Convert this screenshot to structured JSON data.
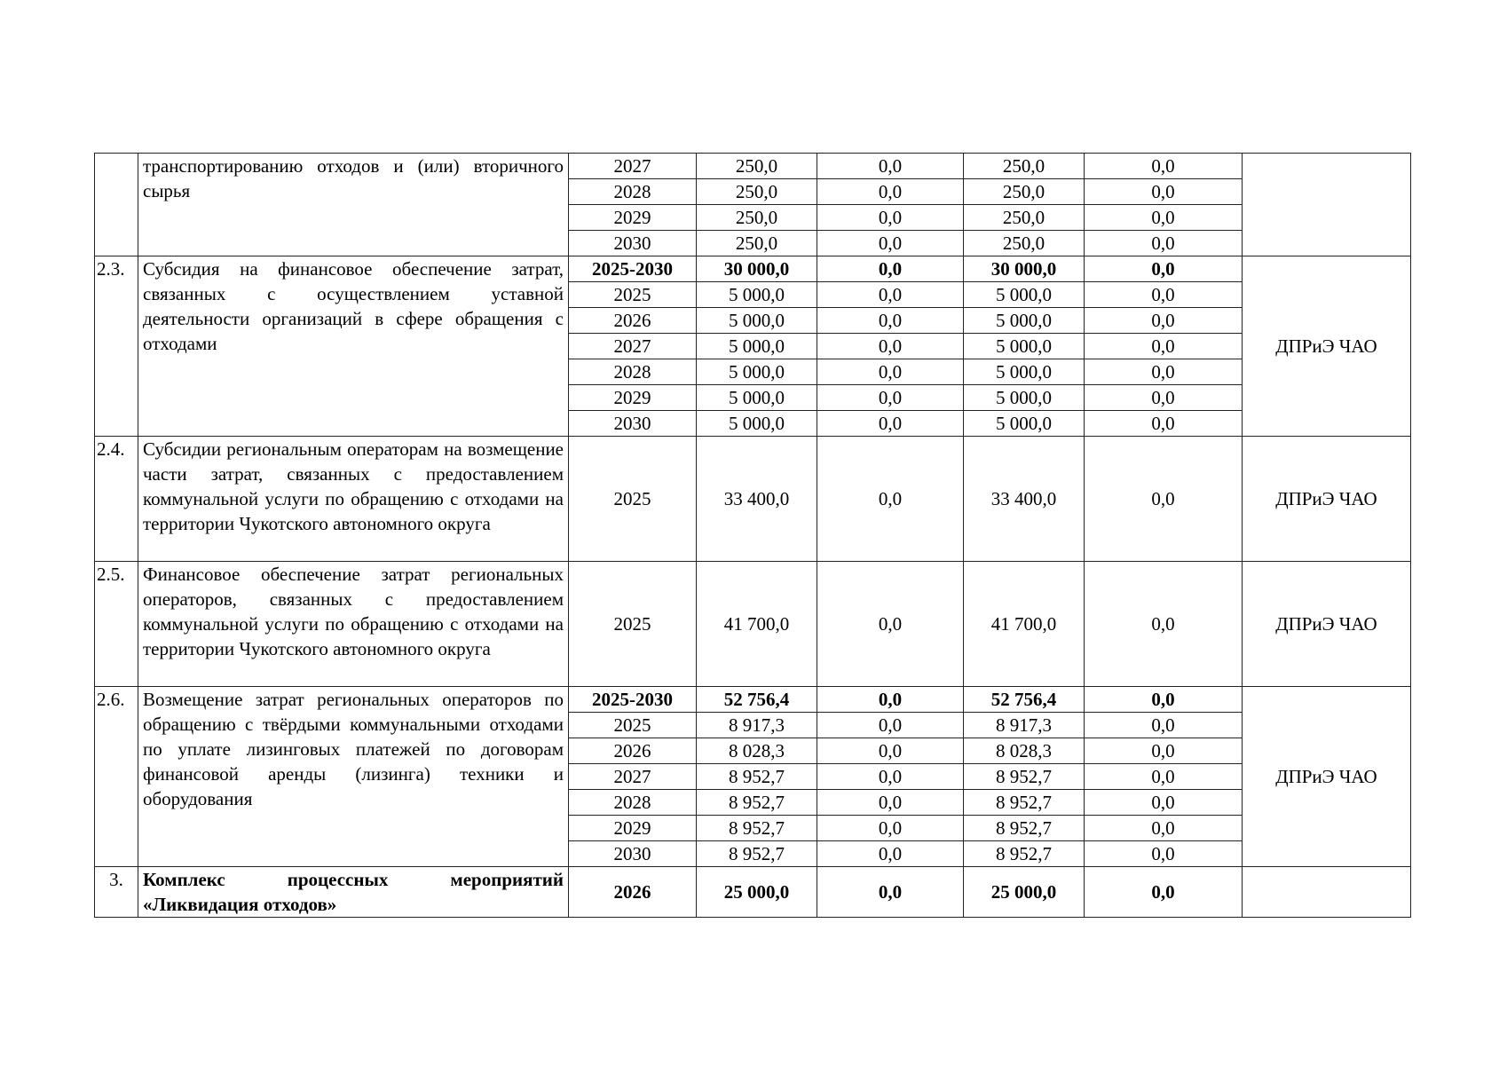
{
  "sections": [
    {
      "num": "",
      "text": "транспортированию отходов и (или) вторичного сырья",
      "responsible": "",
      "rows": [
        {
          "period": "2027",
          "total": "250,0",
          "c1": "0,0",
          "c2": "250,0",
          "c3": "0,0"
        },
        {
          "period": "2028",
          "total": "250,0",
          "c1": "0,0",
          "c2": "250,0",
          "c3": "0,0"
        },
        {
          "period": "2029",
          "total": "250,0",
          "c1": "0,0",
          "c2": "250,0",
          "c3": "0,0"
        },
        {
          "period": "2030",
          "total": "250,0",
          "c1": "0,0",
          "c2": "250,0",
          "c3": "0,0"
        }
      ]
    },
    {
      "num": "2.3.",
      "text": "Субсидия на финансовое обеспечение затрат, связанных с осуществлением уставной деятельности организаций в сфере обращения с отходами",
      "responsible": "ДПРиЭ ЧАО",
      "rows": [
        {
          "period": "2025-2030",
          "total": "30 000,0",
          "c1": "0,0",
          "c2": "30 000,0",
          "c3": "0,0",
          "bold": true
        },
        {
          "period": "2025",
          "total": "5 000,0",
          "c1": "0,0",
          "c2": "5 000,0",
          "c3": "0,0"
        },
        {
          "period": "2026",
          "total": "5 000,0",
          "c1": "0,0",
          "c2": "5 000,0",
          "c3": "0,0"
        },
        {
          "period": "2027",
          "total": "5 000,0",
          "c1": "0,0",
          "c2": "5 000,0",
          "c3": "0,0"
        },
        {
          "period": "2028",
          "total": "5 000,0",
          "c1": "0,0",
          "c2": "5 000,0",
          "c3": "0,0"
        },
        {
          "period": "2029",
          "total": "5 000,0",
          "c1": "0,0",
          "c2": "5 000,0",
          "c3": "0,0"
        },
        {
          "period": "2030",
          "total": "5 000,0",
          "c1": "0,0",
          "c2": "5 000,0",
          "c3": "0,0"
        }
      ]
    },
    {
      "num": "2.4.",
      "text": "Субсидии региональным операторам на возмещение части затрат, связанных с предоставлением коммунальной услуги по обращению с отходами на территории Чукотского автономного округа",
      "responsible": "ДПРиЭ ЧАО",
      "tall": true,
      "rows": [
        {
          "period": "2025",
          "total": "33 400,0",
          "c1": "0,0",
          "c2": "33 400,0",
          "c3": "0,0"
        }
      ]
    },
    {
      "num": "2.5.",
      "text": "Финансовое обеспечение затрат региональных операторов, связанных с предоставлением коммунальной услуги по обращению с отходами на территории Чукотского автономного округа",
      "responsible": "ДПРиЭ ЧАО",
      "tall": true,
      "rows": [
        {
          "period": "2025",
          "total": "41 700,0",
          "c1": "0,0",
          "c2": "41 700,0",
          "c3": "0,0"
        }
      ]
    },
    {
      "num": "2.6.",
      "text": "Возмещение затрат региональных операторов по обращению с твёрдыми коммунальными отходами по уплате лизинговых платежей по договорам финансовой аренды (лизинга) техники и оборудования",
      "responsible": "ДПРиЭ ЧАО",
      "rows": [
        {
          "period": "2025-2030",
          "total": "52 756,4",
          "c1": "0,0",
          "c2": "52 756,4",
          "c3": "0,0",
          "bold": true
        },
        {
          "period": "2025",
          "total": "8 917,3",
          "c1": "0,0",
          "c2": "8 917,3",
          "c3": "0,0"
        },
        {
          "period": "2026",
          "total": "8 028,3",
          "c1": "0,0",
          "c2": "8 028,3",
          "c3": "0,0"
        },
        {
          "period": "2027",
          "total": "8 952,7",
          "c1": "0,0",
          "c2": "8 952,7",
          "c3": "0,0"
        },
        {
          "period": "2028",
          "total": "8 952,7",
          "c1": "0,0",
          "c2": "8 952,7",
          "c3": "0,0"
        },
        {
          "period": "2029",
          "total": "8 952,7",
          "c1": "0,0",
          "c2": "8 952,7",
          "c3": "0,0"
        },
        {
          "period": "2030",
          "total": "8 952,7",
          "c1": "0,0",
          "c2": "8 952,7",
          "c3": "0,0"
        }
      ]
    },
    {
      "num": "3.",
      "text": "Комплекс процессных мероприятий «Ликвидация отходов»",
      "responsible": "",
      "last": true,
      "bold": true,
      "rows": [
        {
          "period": "2026",
          "total": "25 000,0",
          "c1": "0,0",
          "c2": "25 000,0",
          "c3": "0,0",
          "bold": true
        }
      ]
    }
  ]
}
